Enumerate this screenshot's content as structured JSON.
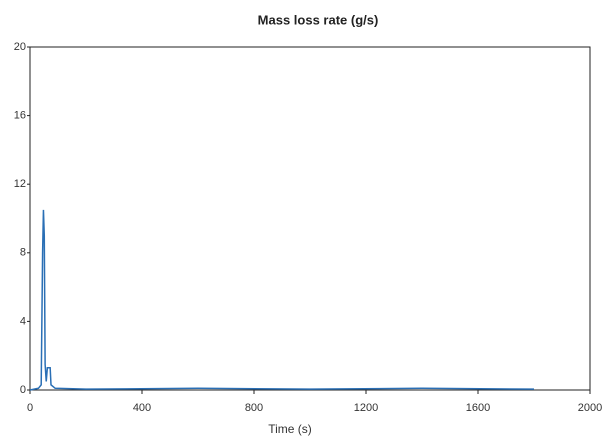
{
  "chart_data": {
    "type": "line",
    "title": "Mass loss rate (g/s)",
    "xlabel": "Time (s)",
    "x": [
      0,
      30,
      40,
      45,
      48,
      51,
      54,
      58,
      62,
      72,
      75,
      90,
      200,
      600,
      1000,
      1400,
      1800
    ],
    "values": [
      0,
      0.1,
      0.3,
      8,
      10.5,
      9,
      1.5,
      0.5,
      1.3,
      1.3,
      0.3,
      0.1,
      0.05,
      0.1,
      0.05,
      0.1,
      0.05
    ],
    "color": "#2a6fb5",
    "xlim": [
      0,
      2000
    ],
    "xticks": [
      0,
      400,
      800,
      1200,
      1600,
      2000
    ],
    "ylim": [
      0,
      20
    ],
    "yticks": [
      0,
      4,
      8,
      12,
      16,
      20
    ],
    "grid": false
  }
}
